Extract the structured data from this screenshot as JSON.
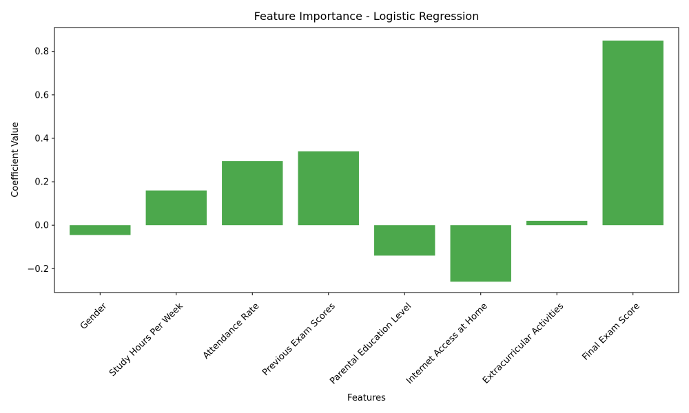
{
  "chart_data": {
    "type": "bar",
    "title": "Feature Importance - Logistic Regression",
    "xlabel": "Features",
    "ylabel": "Coefficient Value",
    "categories": [
      "Gender",
      "Study Hours Per Week",
      "Attendance Rate",
      "Previous Exam Scores",
      "Parental Education Level",
      "Internet Access at Home",
      "Extracurricular Activities",
      "Final Exam Score"
    ],
    "values": [
      -0.045,
      0.16,
      0.295,
      0.34,
      -0.14,
      -0.26,
      0.02,
      0.85
    ],
    "ylim": [
      -0.31,
      0.91
    ],
    "yticks": [
      -0.2,
      0.0,
      0.2,
      0.4,
      0.6,
      0.8
    ],
    "ytick_labels": [
      "−0.2",
      "0.0",
      "0.2",
      "0.4",
      "0.6",
      "0.8"
    ],
    "bar_color": "#4ca84c",
    "grid": false,
    "legend": "none"
  }
}
